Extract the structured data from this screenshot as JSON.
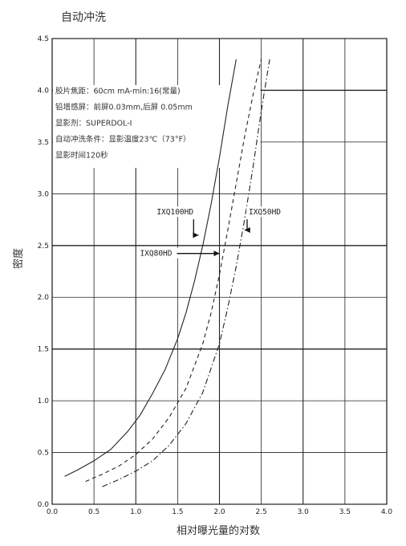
{
  "chart_data": {
    "type": "line",
    "title": "自动冲洗",
    "xlabel": "相对曝光量的对数",
    "ylabel": "密度",
    "xlim": [
      0.0,
      4.0
    ],
    "ylim": [
      0.0,
      4.5
    ],
    "grid": true,
    "xticks": [
      "0.0",
      "0.5",
      "1.0",
      "1.5",
      "2.0",
      "2.5",
      "3.0",
      "3.5",
      "4.0"
    ],
    "yticks": [
      "0.0",
      "0.5",
      "1.0",
      "1.5",
      "2.0",
      "2.5",
      "3.0",
      "3.5",
      "4.0",
      "4.5"
    ],
    "annotations": [
      "胶片焦距：60cm mA-min:16(常量)",
      "铅增感屏：前屏0.03mm,后屏 0.05mm",
      "显影剂：SUPERDOL-I",
      "自动冲洗条件：显影温度23℃（73°F）",
      "显影时间120秒"
    ],
    "series": [
      {
        "name": "IXQ100HD",
        "style": "solid",
        "x": [
          0.15,
          0.3,
          0.5,
          0.7,
          0.9,
          1.05,
          1.2,
          1.35,
          1.5,
          1.6,
          1.7,
          1.8,
          1.9,
          2.0,
          2.1,
          2.2
        ],
        "y": [
          0.27,
          0.33,
          0.42,
          0.53,
          0.7,
          0.86,
          1.07,
          1.3,
          1.6,
          1.85,
          2.15,
          2.5,
          2.9,
          3.35,
          3.85,
          4.3
        ]
      },
      {
        "name": "IXQ80HD",
        "style": "dashed",
        "x": [
          0.4,
          0.6,
          0.8,
          1.0,
          1.2,
          1.4,
          1.6,
          1.8,
          1.9,
          2.0,
          2.1,
          2.2,
          2.3,
          2.4,
          2.5
        ],
        "y": [
          0.22,
          0.29,
          0.37,
          0.48,
          0.63,
          0.84,
          1.12,
          1.55,
          1.85,
          2.22,
          2.65,
          3.1,
          3.55,
          3.95,
          4.3
        ]
      },
      {
        "name": "IXQ50HD",
        "style": "dashdot",
        "x": [
          0.6,
          0.8,
          1.0,
          1.2,
          1.4,
          1.6,
          1.8,
          2.0,
          2.1,
          2.2,
          2.3,
          2.4,
          2.5,
          2.6
        ],
        "y": [
          0.17,
          0.24,
          0.32,
          0.42,
          0.57,
          0.78,
          1.08,
          1.55,
          1.9,
          2.3,
          2.75,
          3.25,
          3.8,
          4.3
        ]
      }
    ],
    "curve_labels": [
      {
        "text": "IXQ100HD",
        "at": [
          1.25,
          2.8
        ],
        "arrow_to": [
          1.75,
          2.6
        ]
      },
      {
        "text": "IXQ80HD",
        "at": [
          1.05,
          2.4
        ],
        "arrow_to": [
          2.0,
          2.4
        ]
      },
      {
        "text": "IXQ50HD",
        "at": [
          2.35,
          2.8
        ],
        "arrow_to": [
          2.3,
          2.65
        ]
      }
    ]
  }
}
